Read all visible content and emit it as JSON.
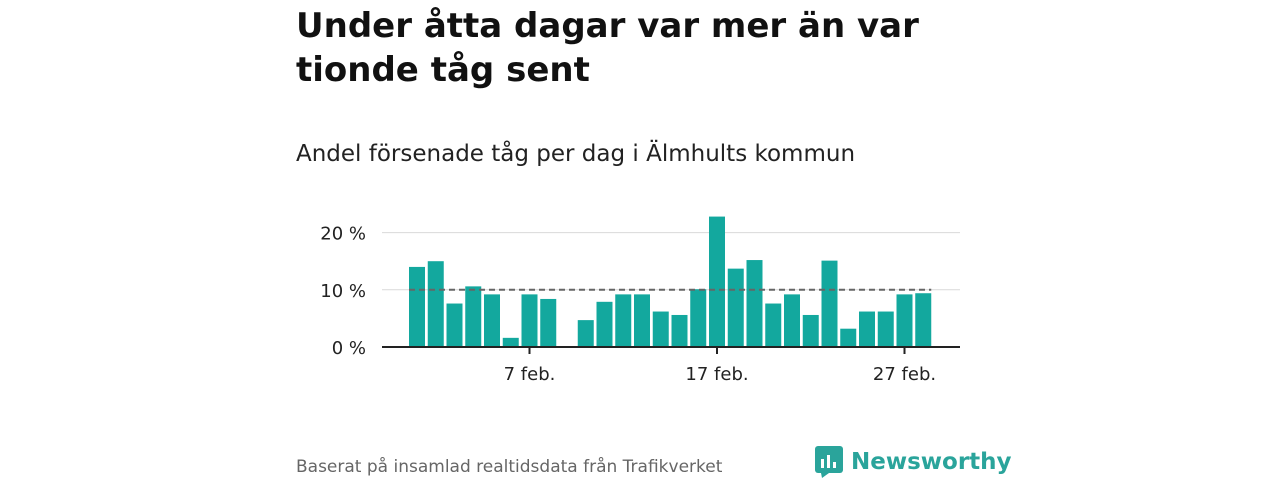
{
  "title": "Under åtta dagar var mer än var tionde tåg sent",
  "subtitle": "Andel försenade tåg per dag i Älmhults kommun",
  "source": "Baserat på insamlad realtidsdata från Trafikverket",
  "brand": {
    "name": "Newsworthy",
    "color": "#2aa49b"
  },
  "colors": {
    "bar": "#13a89e",
    "reference_line": "#666666",
    "grid": "#d9d9d9",
    "axis": "#222222"
  },
  "chart_data": {
    "type": "bar",
    "title": "Andel försenade tåg per dag i Älmhults kommun",
    "xlabel": "",
    "ylabel": "",
    "x_dates": [
      "1 feb.",
      "2 feb.",
      "3 feb.",
      "4 feb.",
      "5 feb.",
      "6 feb.",
      "7 feb.",
      "8 feb.",
      "9 feb.",
      "10 feb.",
      "11 feb.",
      "12 feb.",
      "13 feb.",
      "14 feb.",
      "15 feb.",
      "16 feb.",
      "17 feb.",
      "18 feb.",
      "19 feb.",
      "20 feb.",
      "21 feb.",
      "22 feb.",
      "23 feb.",
      "24 feb.",
      "25 feb.",
      "26 feb.",
      "27 feb.",
      "28 feb."
    ],
    "values": [
      14.0,
      15.0,
      7.6,
      10.6,
      9.2,
      1.6,
      9.2,
      8.4,
      null,
      4.7,
      7.9,
      9.2,
      9.2,
      6.2,
      5.6,
      10.1,
      22.8,
      13.7,
      15.2,
      7.6,
      9.2,
      5.6,
      15.1,
      3.2,
      6.2,
      6.2,
      9.2,
      9.4
    ],
    "reference_value": 10,
    "ylim": [
      0,
      24
    ],
    "y_ticks": [
      0,
      10,
      20
    ],
    "y_tick_labels": [
      "0 %",
      "10 %",
      "20 %"
    ],
    "x_ticks": [
      "7 feb.",
      "17 feb.",
      "27 feb."
    ],
    "grid": true
  }
}
